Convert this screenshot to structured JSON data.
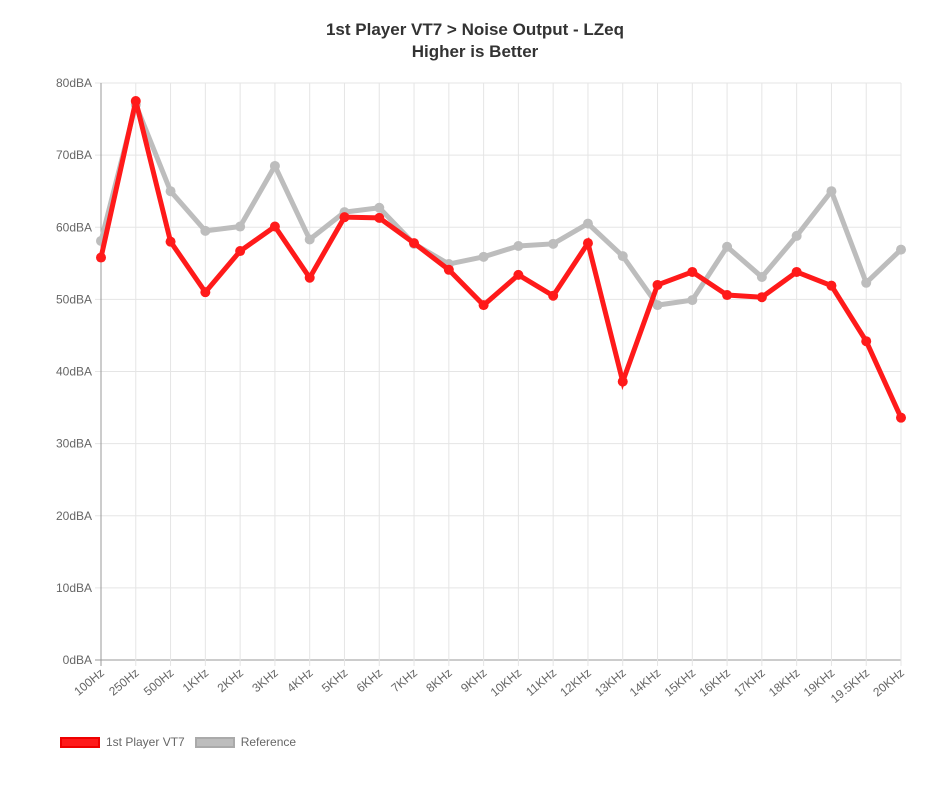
{
  "chart_data": {
    "type": "line",
    "title": "1st Player VT7 > Noise Output - LZeq",
    "subtitle": "Higher is Better",
    "categories": [
      "100Hz",
      "250Hz",
      "500Hz",
      "1KHz",
      "2KHz",
      "3KHz",
      "4KHz",
      "5KHz",
      "6KHz",
      "7KHz",
      "8KHz",
      "9KHz",
      "10KHz",
      "11KHz",
      "12KHz",
      "13KHz",
      "14KHz",
      "15KHz",
      "16KHz",
      "17KHz",
      "18KHz",
      "19KHz",
      "19.5KHz",
      "20KHz"
    ],
    "y_ticks": [
      "0dBA",
      "10dBA",
      "20dBA",
      "30dBA",
      "40dBA",
      "50dBA",
      "60dBA",
      "70dBA",
      "80dBA"
    ],
    "ylim": [
      0,
      80
    ],
    "grid": true,
    "legend_position": "bottom-left",
    "series": [
      {
        "name": "1st Player VT7",
        "color": "#ff1a1a",
        "values": [
          55.8,
          77.5,
          58.0,
          51.0,
          56.7,
          60.1,
          53.0,
          61.4,
          61.3,
          57.8,
          54.1,
          49.2,
          53.4,
          50.5,
          57.8,
          38.6,
          52.0,
          53.8,
          50.6,
          50.3,
          53.8,
          51.9,
          44.2,
          33.6
        ]
      },
      {
        "name": "Reference",
        "color": "#bdbdbd",
        "values": [
          58.1,
          77.0,
          65.0,
          59.5,
          60.1,
          68.5,
          58.3,
          62.1,
          62.7,
          57.7,
          54.9,
          55.9,
          57.4,
          57.7,
          60.5,
          56.0,
          49.2,
          49.9,
          57.3,
          53.1,
          58.8,
          65.0,
          52.3,
          56.9
        ]
      }
    ]
  }
}
